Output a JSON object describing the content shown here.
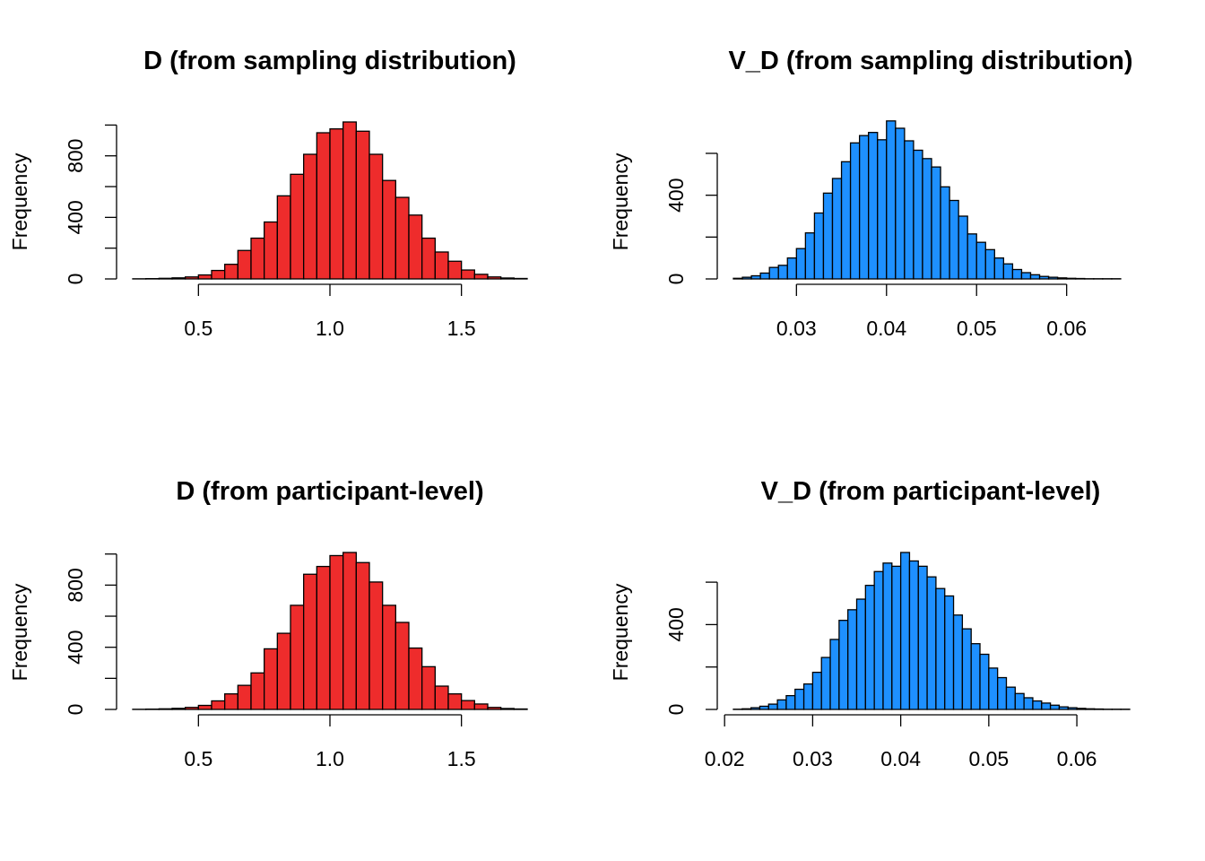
{
  "colors": {
    "red": "#ee2c2c",
    "blue": "#1e90ff"
  },
  "chart_data": [
    {
      "type": "bar",
      "title": "D (from sampling distribution)",
      "ylabel": "Frequency",
      "xlabel": "",
      "color": "#ee2c2c",
      "bin_start": 0.25,
      "bin_width": 0.05,
      "values": [
        1,
        2,
        4,
        7,
        13,
        26,
        55,
        95,
        185,
        265,
        370,
        540,
        680,
        810,
        950,
        975,
        1020,
        960,
        810,
        640,
        530,
        415,
        265,
        175,
        115,
        58,
        30,
        13,
        6,
        3
      ],
      "xlim": [
        0.25,
        1.75
      ],
      "ylim": [
        0,
        1020
      ],
      "xticks": [
        0.5,
        1.0,
        1.5
      ],
      "xtick_labels": [
        "0.5",
        "1.0",
        "1.5"
      ],
      "yticks": [
        0,
        200,
        400,
        600,
        800,
        1000
      ],
      "ytick_labels": [
        "0",
        "",
        "400",
        "",
        "800",
        ""
      ]
    },
    {
      "type": "bar",
      "title": "V_D (from sampling distribution)",
      "ylabel": "Frequency",
      "xlabel": "",
      "color": "#1e90ff",
      "bin_start": 0.023,
      "bin_width": 0.001,
      "values": [
        3,
        8,
        15,
        28,
        55,
        65,
        100,
        145,
        220,
        315,
        410,
        480,
        560,
        650,
        685,
        700,
        665,
        755,
        720,
        660,
        615,
        575,
        535,
        440,
        375,
        300,
        215,
        175,
        140,
        100,
        72,
        45,
        30,
        20,
        12,
        8,
        5,
        3,
        2,
        1,
        1,
        1,
        1,
        0
      ],
      "xlim": [
        0.023,
        0.067
      ],
      "ylim": [
        0,
        750
      ],
      "xticks": [
        0.03,
        0.04,
        0.05,
        0.06
      ],
      "xtick_labels": [
        "0.03",
        "0.04",
        "0.05",
        "0.06"
      ],
      "yticks": [
        0,
        200,
        400,
        600
      ],
      "ytick_labels": [
        "0",
        "",
        "400",
        ""
      ]
    },
    {
      "type": "bar",
      "title": "D (from participant-level)",
      "ylabel": "Frequency",
      "xlabel": "",
      "color": "#ee2c2c",
      "bin_start": 0.25,
      "bin_width": 0.05,
      "values": [
        1,
        2,
        4,
        7,
        13,
        26,
        55,
        100,
        155,
        235,
        390,
        490,
        670,
        870,
        920,
        990,
        1010,
        945,
        820,
        670,
        560,
        395,
        275,
        150,
        100,
        57,
        35,
        13,
        6,
        3
      ],
      "xlim": [
        0.25,
        1.75
      ],
      "ylim": [
        0,
        1010
      ],
      "xticks": [
        0.5,
        1.0,
        1.5
      ],
      "xtick_labels": [
        "0.5",
        "1.0",
        "1.5"
      ],
      "yticks": [
        0,
        200,
        400,
        600,
        800,
        1000
      ],
      "ytick_labels": [
        "0",
        "",
        "400",
        "",
        "800",
        ""
      ]
    },
    {
      "type": "bar",
      "title": "V_D (from participant-level)",
      "ylabel": "Frequency",
      "xlabel": "",
      "color": "#1e90ff",
      "bin_start": 0.021,
      "bin_width": 0.001,
      "values": [
        1,
        3,
        8,
        15,
        25,
        45,
        65,
        95,
        120,
        175,
        245,
        330,
        420,
        470,
        520,
        585,
        650,
        690,
        675,
        740,
        700,
        675,
        625,
        570,
        535,
        445,
        380,
        310,
        260,
        195,
        150,
        105,
        75,
        55,
        40,
        30,
        20,
        12,
        8,
        5,
        3,
        2,
        1,
        1,
        1
      ],
      "xlim": [
        0.021,
        0.066
      ],
      "ylim": [
        0,
        740
      ],
      "xticks": [
        0.02,
        0.03,
        0.04,
        0.05,
        0.06
      ],
      "xtick_labels": [
        "0.02",
        "0.03",
        "0.04",
        "0.05",
        "0.06"
      ],
      "yticks": [
        0,
        200,
        400,
        600
      ],
      "ytick_labels": [
        "0",
        "",
        "400",
        ""
      ]
    }
  ]
}
